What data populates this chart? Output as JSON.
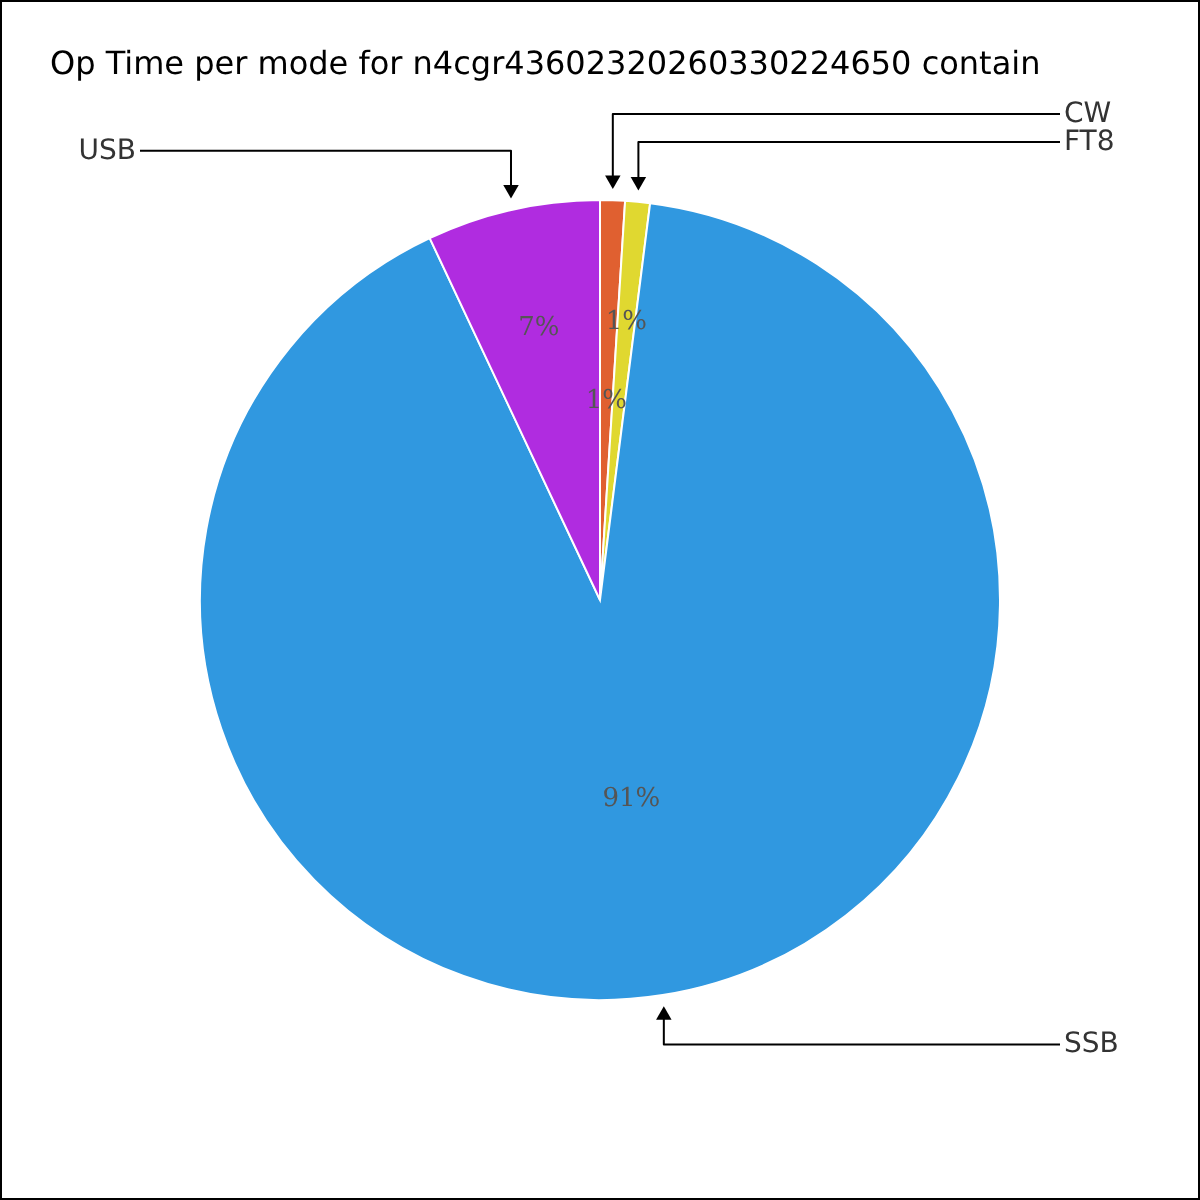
{
  "chart_data": {
    "type": "pie",
    "title": "Op Time per mode for n4cgr43602320260330224650 contain",
    "categories": [
      "CW",
      "FT8",
      "SSB",
      "USB"
    ],
    "values": [
      1,
      1,
      91,
      7
    ],
    "colors": [
      "#e06030",
      "#e0d830",
      "#3098e0",
      "#b02ce0"
    ],
    "value_labels": [
      "1%",
      "1%",
      "91%",
      "7%"
    ]
  }
}
